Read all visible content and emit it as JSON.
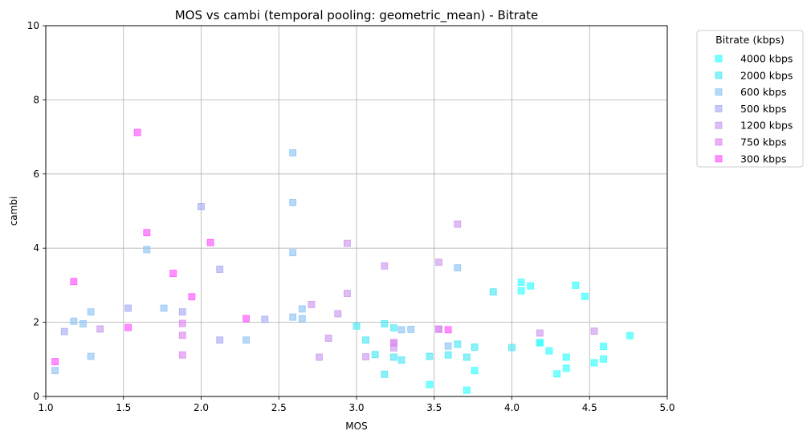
{
  "chart_data": {
    "type": "scatter",
    "title": "MOS vs cambi (temporal pooling: geometric_mean) - Bitrate",
    "xlabel": "MOS",
    "ylabel": "cambi",
    "xlim": [
      1.0,
      5.0
    ],
    "ylim": [
      0,
      10
    ],
    "x_ticks": [
      "1.0",
      "1.5",
      "2.0",
      "2.5",
      "3.0",
      "3.5",
      "4.0",
      "4.5",
      "5.0"
    ],
    "y_ticks": [
      "0",
      "2",
      "4",
      "6",
      "8",
      "10"
    ],
    "grid": true,
    "legend": {
      "title": "Bitrate (kbps)",
      "placement": "outside-right"
    },
    "series": [
      {
        "name": "4000 kbps",
        "color": "#33ffff",
        "points": [
          [
            3.47,
            0.32
          ],
          [
            3.71,
            0.17
          ],
          [
            3.76,
            0.7
          ],
          [
            4.29,
            0.61
          ],
          [
            4.35,
            0.76
          ],
          [
            4.53,
            0.91
          ],
          [
            4.59,
            1.01
          ],
          [
            4.59,
            1.35
          ],
          [
            4.76,
            1.64
          ],
          [
            4.35,
            1.06
          ],
          [
            4.24,
            1.23
          ],
          [
            4.18,
            1.45
          ],
          [
            4.41,
            3.0
          ],
          [
            4.47,
            2.7
          ],
          [
            4.06,
            3.08
          ],
          [
            4.12,
            2.98
          ],
          [
            4.06,
            2.85
          ],
          [
            4.18,
            1.45
          ]
        ]
      },
      {
        "name": "2000 kbps",
        "color": "#4de8f5",
        "points": [
          [
            3.18,
            0.6
          ],
          [
            3.29,
            0.98
          ],
          [
            3.47,
            1.08
          ],
          [
            3.65,
            1.41
          ],
          [
            3.76,
            1.33
          ],
          [
            3.71,
            1.06
          ],
          [
            4.0,
            1.32
          ],
          [
            3.88,
            2.82
          ],
          [
            3.59,
            1.12
          ],
          [
            3.24,
            1.06
          ],
          [
            3.12,
            1.13
          ],
          [
            3.06,
            1.52
          ],
          [
            3.0,
            1.9
          ],
          [
            3.18,
            1.96
          ],
          [
            3.24,
            1.85
          ]
        ]
      },
      {
        "name": "600 kbps",
        "color": "#8fc4f5",
        "points": [
          [
            1.06,
            0.7
          ],
          [
            1.29,
            1.08
          ],
          [
            1.18,
            2.03
          ],
          [
            1.24,
            1.96
          ],
          [
            1.29,
            2.28
          ],
          [
            1.65,
            3.96
          ],
          [
            1.76,
            2.38
          ],
          [
            2.29,
            1.52
          ],
          [
            2.59,
            6.57
          ],
          [
            2.59,
            5.23
          ],
          [
            2.59,
            3.88
          ],
          [
            2.59,
            2.14
          ],
          [
            2.65,
            2.1
          ],
          [
            2.65,
            2.36
          ],
          [
            3.29,
            1.8
          ],
          [
            3.35,
            1.81
          ],
          [
            3.59,
            1.36
          ],
          [
            3.65,
            3.47
          ]
        ]
      },
      {
        "name": "500 kbps",
        "color": "#a9acf5",
        "points": [
          [
            1.12,
            1.75
          ],
          [
            1.53,
            2.38
          ],
          [
            1.88,
            2.28
          ],
          [
            2.0,
            5.12
          ],
          [
            2.12,
            3.43
          ],
          [
            2.12,
            1.52
          ],
          [
            2.41,
            2.08
          ]
        ]
      },
      {
        "name": "1200 kbps",
        "color": "#cc99f0",
        "points": [
          [
            1.35,
            1.82
          ],
          [
            2.71,
            2.48
          ],
          [
            2.76,
            1.06
          ],
          [
            2.82,
            1.57
          ],
          [
            2.88,
            2.23
          ],
          [
            2.94,
            4.13
          ],
          [
            2.94,
            2.78
          ],
          [
            3.06,
            1.07
          ],
          [
            3.18,
            3.52
          ],
          [
            3.24,
            1.31
          ],
          [
            3.53,
            3.62
          ],
          [
            3.65,
            4.65
          ],
          [
            4.18,
            1.71
          ],
          [
            4.53,
            1.76
          ],
          [
            3.53,
            1.81
          ],
          [
            3.24,
            1.45
          ]
        ]
      },
      {
        "name": "750 kbps",
        "color": "#dd88ee",
        "points": [
          [
            1.88,
            1.97
          ],
          [
            1.88,
            1.65
          ],
          [
            1.88,
            1.12
          ],
          [
            3.24,
            1.45
          ],
          [
            3.53,
            1.82
          ]
        ]
      },
      {
        "name": "300 kbps",
        "color": "#ff55ff",
        "points": [
          [
            1.06,
            0.94
          ],
          [
            1.18,
            3.1
          ],
          [
            1.53,
            1.86
          ],
          [
            1.59,
            7.12
          ],
          [
            1.65,
            4.42
          ],
          [
            1.82,
            3.32
          ],
          [
            1.94,
            2.69
          ],
          [
            2.06,
            4.15
          ],
          [
            2.29,
            2.1
          ],
          [
            3.59,
            1.8
          ]
        ]
      }
    ]
  }
}
